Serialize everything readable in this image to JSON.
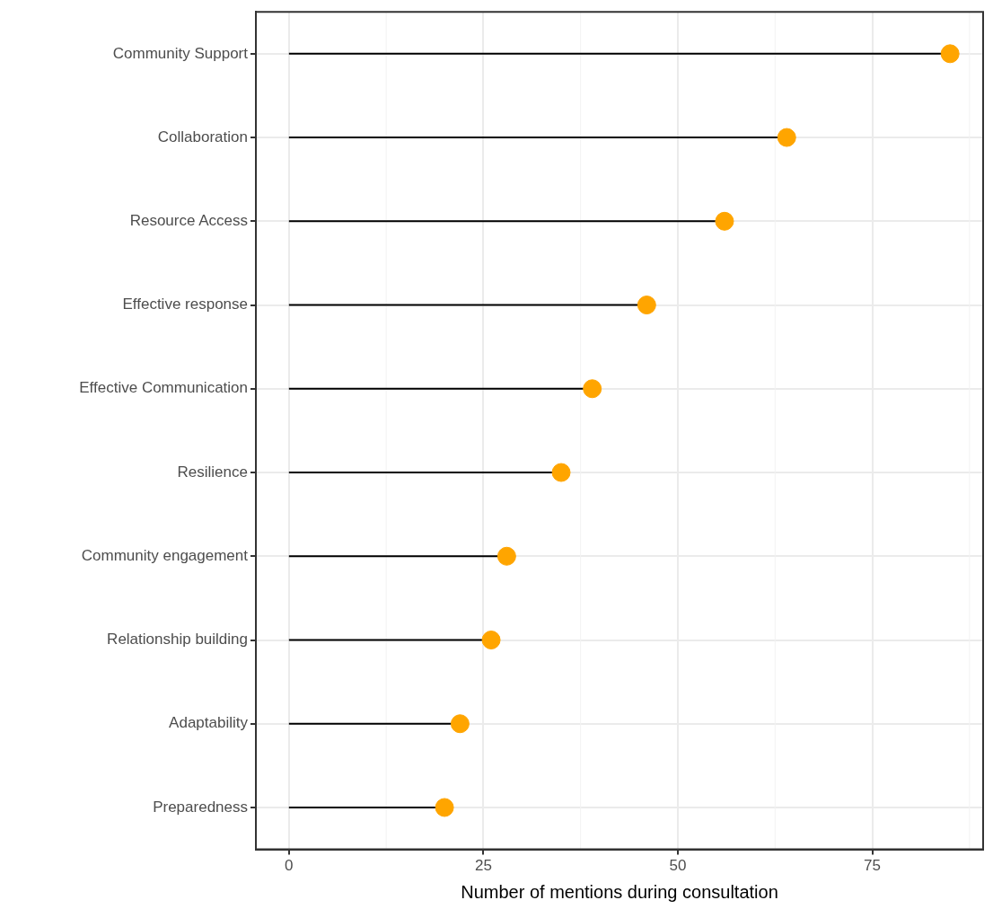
{
  "chart_data": {
    "type": "lollipop",
    "orientation": "horizontal",
    "categories": [
      "Community Support",
      "Collaboration",
      "Resource Access",
      "Effective response",
      "Effective Communication",
      "Resilience",
      "Community engagement",
      "Relationship building",
      "Adaptability",
      "Preparedness"
    ],
    "values": [
      85,
      64,
      56,
      46,
      39,
      35,
      28,
      26,
      22,
      20
    ],
    "color": "#ffa500",
    "xlabel": "Number of mentions during consultation",
    "xlim": [
      -4.25,
      89.25
    ],
    "xticks": [
      0,
      25,
      50,
      75
    ],
    "grid": true,
    "legend": false,
    "marker": "circle"
  }
}
